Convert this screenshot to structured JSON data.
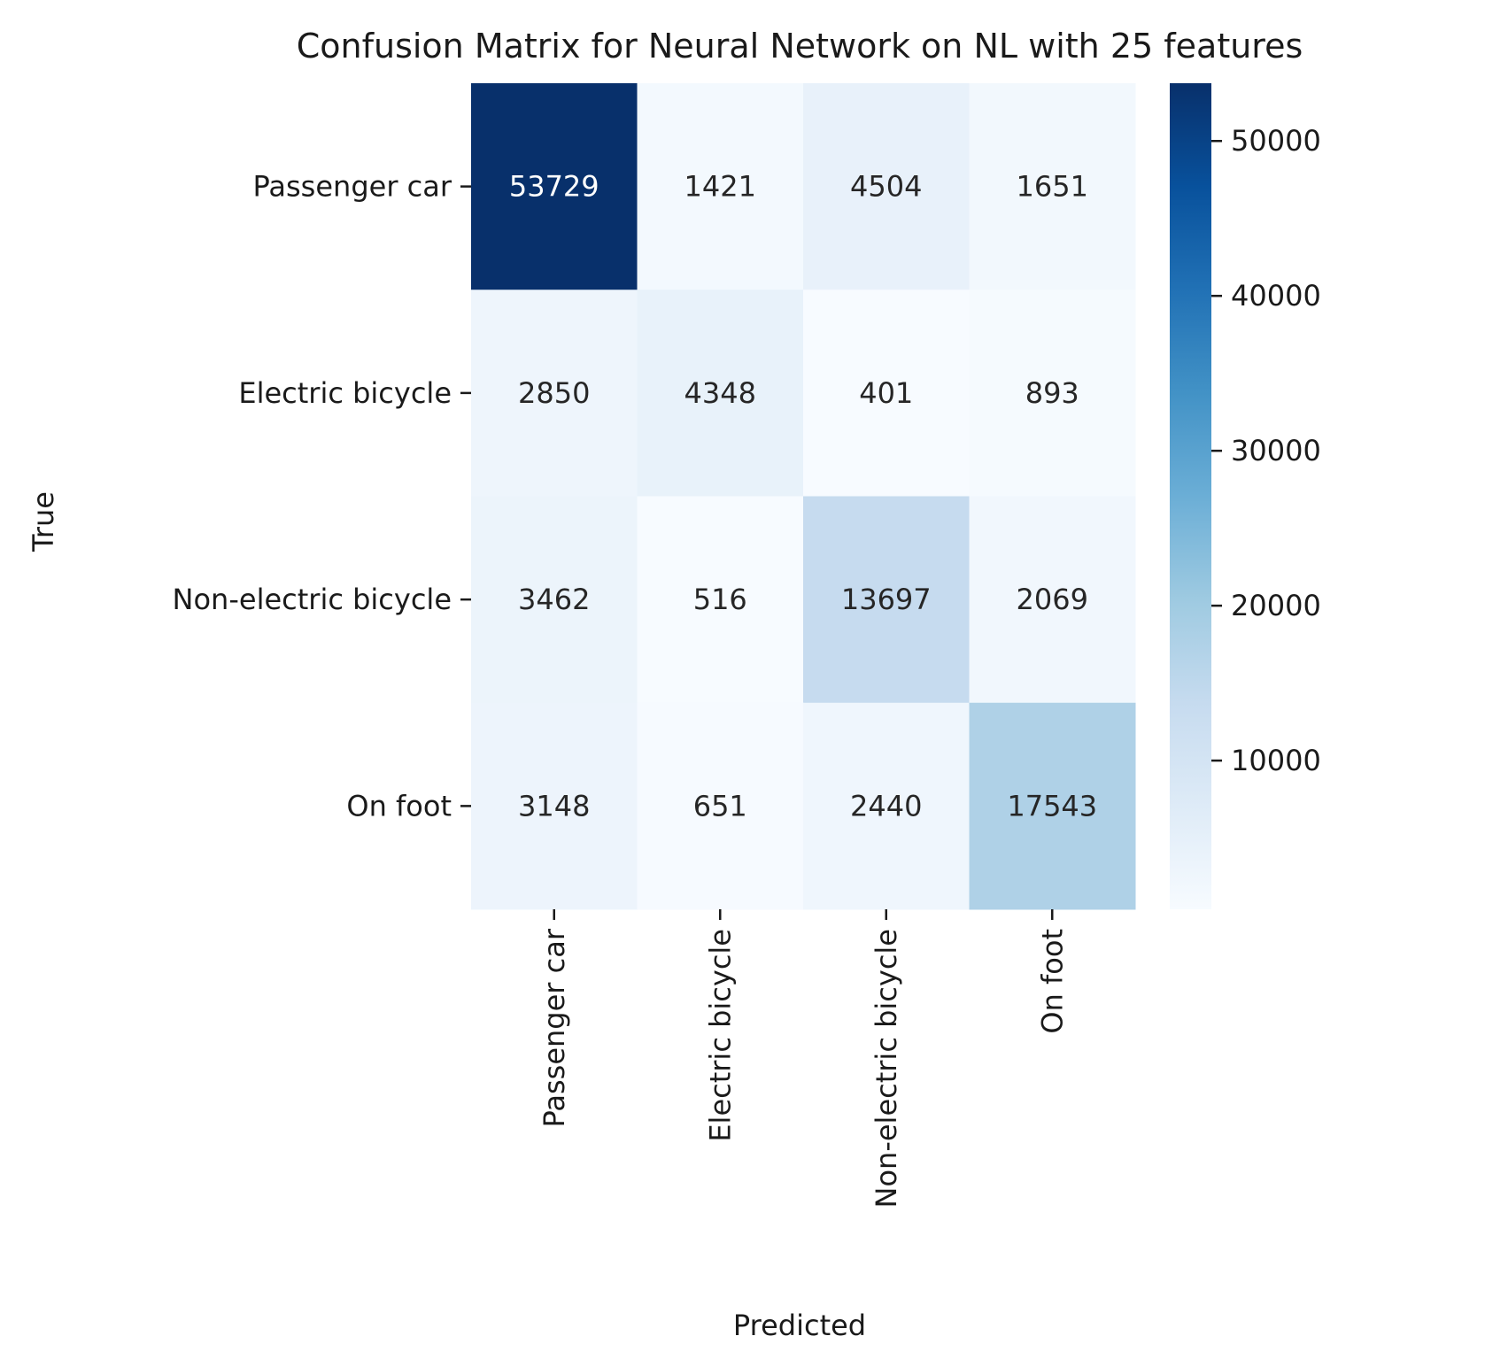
{
  "chart_data": {
    "type": "heatmap",
    "title": "Confusion Matrix for Neural Network on NL with 25 features",
    "xlabel": "Predicted",
    "ylabel": "True",
    "x_categories": [
      "Passenger car",
      "Electric bicycle",
      "Non-electric bicycle",
      "On foot"
    ],
    "y_categories": [
      "Passenger car",
      "Electric bicycle",
      "Non-electric bicycle",
      "On foot"
    ],
    "values": [
      [
        53729,
        1421,
        4504,
        1651
      ],
      [
        2850,
        4348,
        401,
        893
      ],
      [
        3462,
        516,
        13697,
        2069
      ],
      [
        3148,
        651,
        2440,
        17543
      ]
    ],
    "colormap": "Blues",
    "vmin": 401,
    "vmax": 53729,
    "colorbar_ticks": [
      10000,
      20000,
      30000,
      40000,
      50000
    ]
  }
}
